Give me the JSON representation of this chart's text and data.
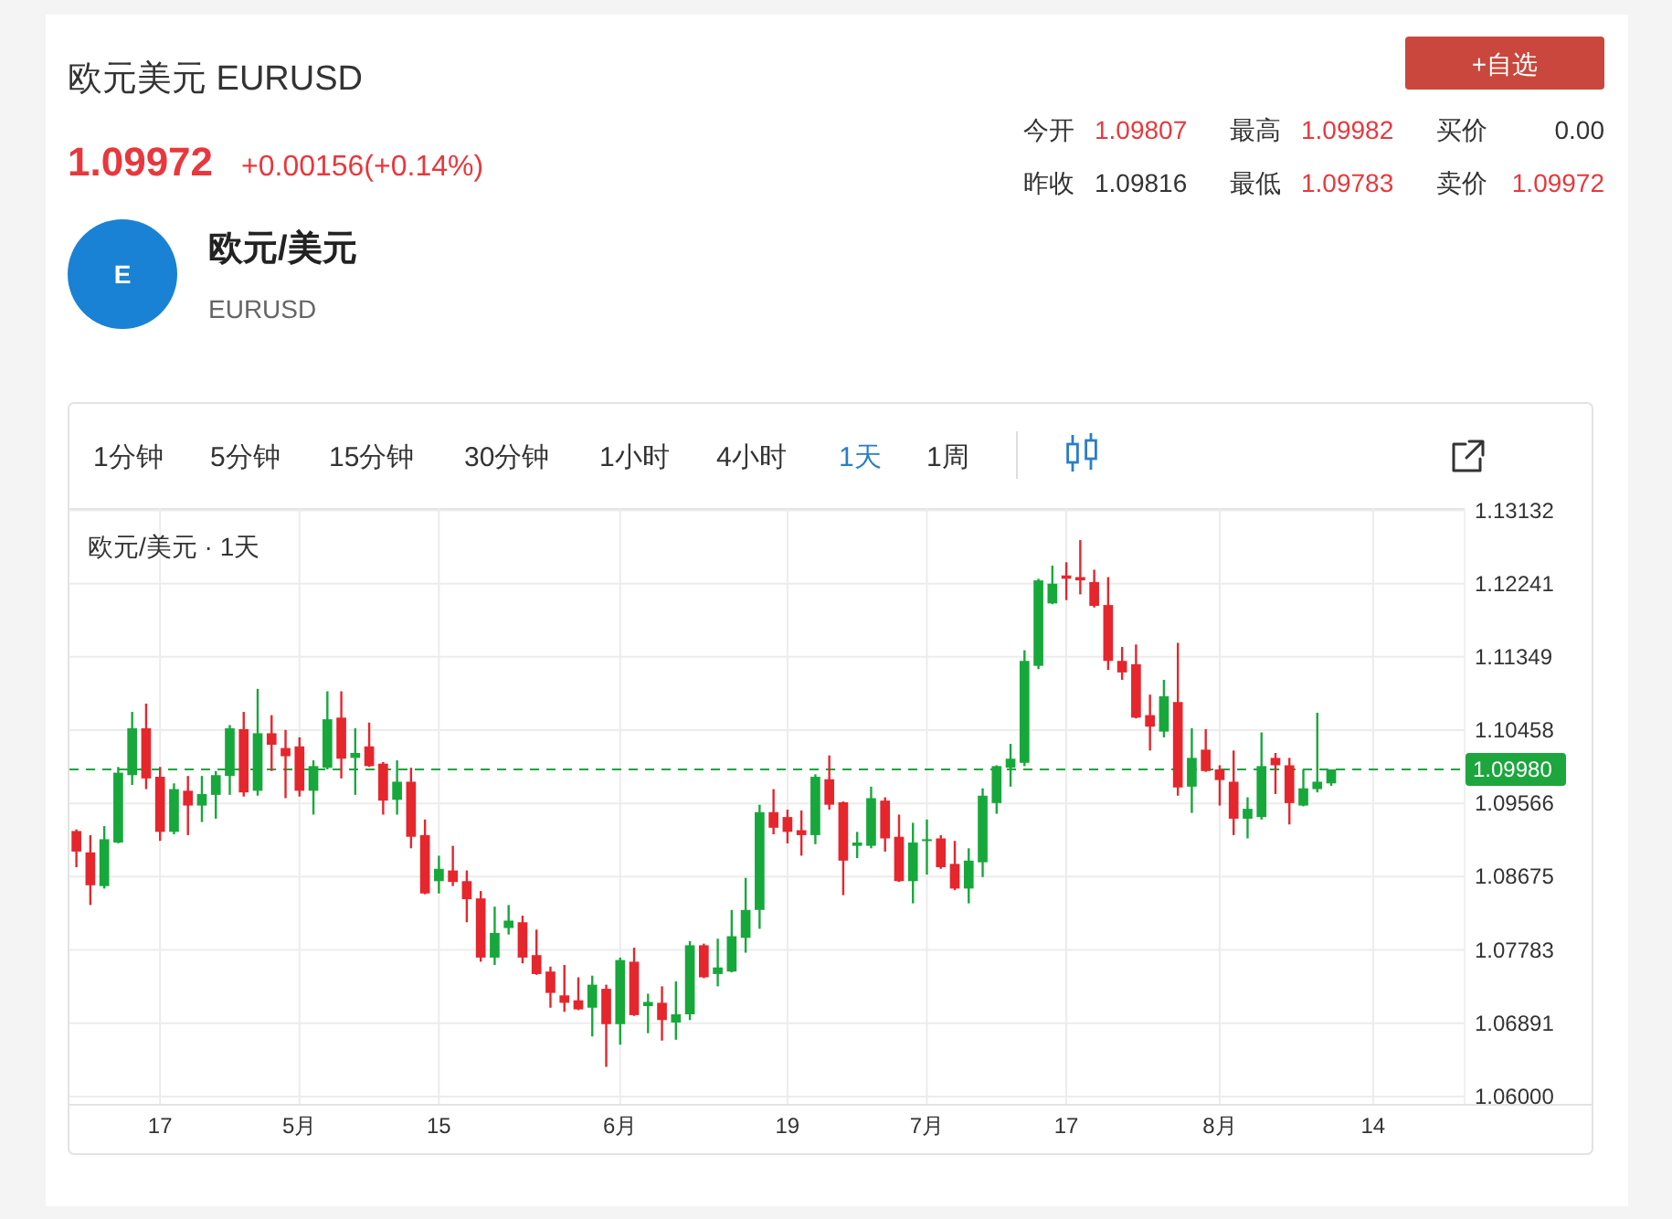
{
  "chart_data": {
    "type": "candlestick",
    "title": "欧元美元 EURUSD",
    "annotations": [
      "1.09972",
      "+0.00156(+0.14%)",
      "+自选",
      "今开",
      "1.09807",
      "最高",
      "1.09982",
      "买价",
      "0.00",
      "昨收",
      "1.09816",
      "最低",
      "1.09783",
      "卖价",
      "1.09972",
      "E",
      "欧元/美元",
      "EURUSD",
      "1分钟",
      "5分钟",
      "15分钟",
      "30分钟",
      "1小时",
      "4小时",
      "1天",
      "1周",
      "欧元/美元 · 1天"
    ],
    "categories": [
      null,
      null,
      null,
      null,
      null,
      null,
      "17",
      null,
      null,
      null,
      null,
      null,
      null,
      null,
      null,
      null,
      "5月",
      null,
      null,
      null,
      null,
      null,
      null,
      null,
      null,
      null,
      "15",
      null,
      null,
      null,
      null,
      null,
      null,
      null,
      null,
      null,
      null,
      null,
      null,
      "6月",
      null,
      null,
      null,
      null,
      null,
      null,
      null,
      null,
      null,
      null,
      null,
      "19",
      null,
      null,
      null,
      null,
      null,
      null,
      null,
      null,
      null,
      "7月",
      null,
      null,
      null,
      null,
      null,
      null,
      null,
      null,
      null,
      "17",
      null,
      null,
      null,
      null,
      null,
      null,
      null,
      null,
      null,
      null,
      "8月",
      null,
      null,
      null,
      null,
      null,
      null,
      null,
      null,
      null,
      null,
      "14",
      null,
      null,
      null,
      null,
      null,
      null
    ],
    "ohlc": [
      [
        1.0923,
        1.0925,
        1.0879,
        1.0898
      ],
      [
        1.0897,
        1.0918,
        1.0833,
        1.0857
      ],
      [
        1.0856,
        1.0929,
        1.0853,
        1.0913
      ],
      [
        1.0909,
        1.1001,
        1.0908,
        1.0994
      ],
      [
        1.0991,
        1.1068,
        1.0979,
        1.1048
      ],
      [
        1.1048,
        1.1078,
        1.0974,
        1.0987
      ],
      [
        1.0989,
        1.1001,
        1.0911,
        1.0922
      ],
      [
        1.0922,
        1.0981,
        1.0919,
        1.0974
      ],
      [
        1.0972,
        1.099,
        1.0918,
        1.0954
      ],
      [
        1.0954,
        1.099,
        1.0934,
        1.0968
      ],
      [
        1.0967,
        1.0996,
        1.0938,
        1.0991
      ],
      [
        1.099,
        1.1052,
        1.0967,
        1.1048
      ],
      [
        1.1047,
        1.1068,
        1.0965,
        1.097
      ],
      [
        1.0972,
        1.1096,
        1.0966,
        1.1042
      ],
      [
        1.1042,
        1.1064,
        1.0996,
        1.1028
      ],
      [
        1.1024,
        1.1046,
        1.0963,
        1.1014
      ],
      [
        1.1026,
        1.1037,
        1.0965,
        1.0972
      ],
      [
        1.0972,
        1.1009,
        1.0943,
        1.1002
      ],
      [
        1.1,
        1.1093,
        1.0998,
        1.1059
      ],
      [
        1.1061,
        1.1093,
        1.0987,
        1.1011
      ],
      [
        1.1012,
        1.1048,
        1.0967,
        1.1018
      ],
      [
        1.1026,
        1.1055,
        1.1001,
        1.1002
      ],
      [
        1.1005,
        1.1007,
        1.0943,
        1.096
      ],
      [
        1.0961,
        1.1009,
        1.0943,
        1.0983
      ],
      [
        1.0983,
        1.1,
        1.0902,
        1.0916
      ],
      [
        1.0918,
        1.0937,
        1.0846,
        1.0847
      ],
      [
        1.0862,
        1.0893,
        1.0847,
        1.0877
      ],
      [
        1.0875,
        1.0905,
        1.0856,
        1.0861
      ],
      [
        1.0862,
        1.0875,
        1.0812,
        1.084
      ],
      [
        1.0841,
        1.085,
        1.0764,
        1.0769
      ],
      [
        1.0769,
        1.0831,
        1.076,
        1.0799
      ],
      [
        1.0805,
        1.0833,
        1.0797,
        1.0814
      ],
      [
        1.0812,
        1.082,
        1.0762,
        1.0769
      ],
      [
        1.0772,
        1.0803,
        1.0748,
        1.0749
      ],
      [
        1.0752,
        1.0758,
        1.0708,
        1.0726
      ],
      [
        1.0723,
        1.076,
        1.0703,
        1.0714
      ],
      [
        1.0717,
        1.0745,
        1.0705,
        1.0706
      ],
      [
        1.0708,
        1.0747,
        1.0673,
        1.0736
      ],
      [
        1.0731,
        1.0736,
        1.0636,
        1.0688
      ],
      [
        1.0688,
        1.0769,
        1.0663,
        1.0766
      ],
      [
        1.0764,
        1.0781,
        1.0698,
        1.0699
      ],
      [
        1.071,
        1.0725,
        1.0677,
        1.0715
      ],
      [
        1.0714,
        1.0734,
        1.0668,
        1.0693
      ],
      [
        1.069,
        1.074,
        1.0669,
        1.07
      ],
      [
        1.07,
        1.0789,
        1.0693,
        1.0784
      ],
      [
        1.0784,
        1.0786,
        1.0744,
        1.0745
      ],
      [
        1.0749,
        1.0792,
        1.0734,
        1.0757
      ],
      [
        1.0752,
        1.0827,
        1.0751,
        1.0795
      ],
      [
        1.0793,
        1.0866,
        1.0775,
        1.0827
      ],
      [
        1.0827,
        1.0955,
        1.0804,
        1.0946
      ],
      [
        1.0946,
        1.0974,
        1.0919,
        1.0927
      ],
      [
        1.094,
        1.0949,
        1.0908,
        1.0922
      ],
      [
        1.0924,
        1.0948,
        1.0893,
        1.0918
      ],
      [
        1.0918,
        1.0992,
        1.0907,
        1.0989
      ],
      [
        1.0986,
        1.1015,
        1.0949,
        1.0955
      ],
      [
        1.0958,
        1.0959,
        1.0845,
        1.0887
      ],
      [
        1.0905,
        1.0922,
        1.089,
        1.0909
      ],
      [
        1.0905,
        1.0977,
        1.0902,
        1.0963
      ],
      [
        1.096,
        1.0964,
        1.0898,
        1.0914
      ],
      [
        1.0916,
        1.0943,
        1.0861,
        1.0862
      ],
      [
        1.0862,
        1.0933,
        1.0835,
        1.0909
      ],
      [
        1.0911,
        1.0937,
        1.087,
        1.0913
      ],
      [
        1.0914,
        1.0918,
        1.0877,
        1.0879
      ],
      [
        1.0883,
        1.0911,
        1.0851,
        1.0853
      ],
      [
        1.0853,
        1.0902,
        1.0835,
        1.0887
      ],
      [
        1.0885,
        1.0975,
        1.0867,
        1.0966
      ],
      [
        1.0957,
        1.1003,
        1.0944,
        1.1002
      ],
      [
        1.1,
        1.1029,
        1.0977,
        1.1011
      ],
      [
        1.1006,
        1.1143,
        1.1002,
        1.113
      ],
      [
        1.1124,
        1.123,
        1.112,
        1.1228
      ],
      [
        1.12,
        1.1246,
        1.1199,
        1.1224
      ],
      [
        1.1234,
        1.125,
        1.1204,
        1.123
      ],
      [
        1.1232,
        1.1277,
        1.1211,
        1.1228
      ],
      [
        1.1226,
        1.1241,
        1.1195,
        1.1197
      ],
      [
        1.1198,
        1.1232,
        1.1119,
        1.113
      ],
      [
        1.113,
        1.1147,
        1.1107,
        1.1116
      ],
      [
        1.1126,
        1.115,
        1.106,
        1.1061
      ],
      [
        1.1064,
        1.1089,
        1.1021,
        1.105
      ],
      [
        1.1044,
        1.1107,
        1.1037,
        1.1087
      ],
      [
        1.108,
        1.1152,
        1.0966,
        1.0976
      ],
      [
        1.0977,
        1.1048,
        1.0945,
        1.1012
      ],
      [
        1.1022,
        1.1047,
        1.0995,
        1.0996
      ],
      [
        1.0998,
        1.1003,
        1.0954,
        1.0985
      ],
      [
        1.0983,
        1.1021,
        1.0918,
        1.0938
      ],
      [
        1.0938,
        1.0964,
        1.0914,
        1.095
      ],
      [
        1.094,
        1.1043,
        1.0937,
        1.1002
      ],
      [
        1.1012,
        1.1018,
        1.0968,
        1.1003
      ],
      [
        1.1003,
        1.1012,
        1.0931,
        1.0957
      ],
      [
        1.0954,
        1.0998,
        1.0953,
        1.0975
      ],
      [
        1.0974,
        1.1067,
        1.097,
        1.0983
      ],
      [
        1.0981,
        1.0998,
        1.0978,
        1.0998
      ],
      null,
      null,
      null,
      null,
      null,
      null,
      null,
      null,
      null
    ],
    "ylim": [
      1.0591,
      1.1316
    ],
    "yticks": [
      {
        "value": 1.06,
        "label": "1.06000"
      },
      1.06891,
      1.07783,
      1.08675,
      1.09566,
      1.10458,
      1.11349,
      1.12241,
      1.13132
    ],
    "grid": true,
    "ref_lines": [
      {
        "axis": "y",
        "value": 1.0998,
        "label": "1.09980",
        "color": "#1ca63d",
        "line_style": "dashed"
      }
    ]
  }
}
